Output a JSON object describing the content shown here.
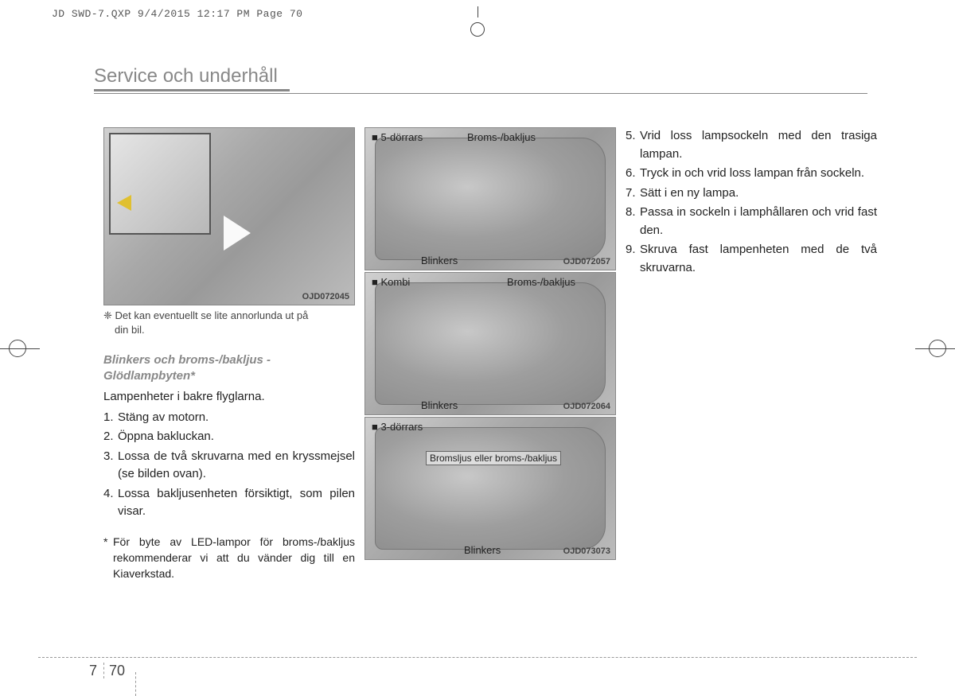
{
  "meta": {
    "header_line": "JD SWD-7.QXP  9/4/2015  12:17 PM  Page 70"
  },
  "title": "Service och underhåll",
  "figure1": {
    "code": "OJD072045",
    "note_prefix": "❈ ",
    "note_line1": "Det kan eventuellt se lite annorlunda ut på",
    "note_line2": "din bil."
  },
  "col1": {
    "subheading_l1": "Blinkers och broms-/bakljus -",
    "subheading_l2": "Glödlampbyten*",
    "intro": "Lampenheter i bakre flyglarna.",
    "items": [
      {
        "n": "1.",
        "t": "Stäng av motorn."
      },
      {
        "n": "2.",
        "t": "Öppna bakluckan."
      },
      {
        "n": "3.",
        "t": "Lossa de två skruvarna med en kryssmejsel (se bilden ovan)."
      },
      {
        "n": "4.",
        "t": "Lossa bakljusenheten försiktigt, som pilen visar."
      }
    ],
    "footnote": "För byte av LED-lampor för broms-/bakljus rekommenderar vi att du vänder dig till en Kiaverkstad."
  },
  "col2": {
    "fig_a": {
      "variant": "■ 5-dörrars",
      "label_top": "Broms-/bakljus",
      "label_bottom": "Blinkers",
      "code": "OJD072057"
    },
    "fig_b": {
      "variant": "■ Kombi",
      "label_right": "Broms-/bakljus",
      "label_bottom": "Blinkers",
      "code": "OJD072064"
    },
    "fig_c": {
      "variant": "■ 3-dörrars",
      "label_box": "Bromsljus eller broms-/bakljus",
      "label_bottom": "Blinkers",
      "code": "OJD073073"
    }
  },
  "col3": {
    "items": [
      {
        "n": "5.",
        "t": "Vrid loss lampsockeln med den trasiga lampan."
      },
      {
        "n": "6.",
        "t": "Tryck in och vrid loss lampan från sockeln."
      },
      {
        "n": "7.",
        "t": "Sätt i en ny lampa."
      },
      {
        "n": "8.",
        "t": "Passa in sockeln i lamphållaren och vrid fast den."
      },
      {
        "n": "9.",
        "t": "Skruva fast lampenheten med de två skruvarna."
      }
    ]
  },
  "footer": {
    "chapter": "7",
    "page": "70"
  }
}
